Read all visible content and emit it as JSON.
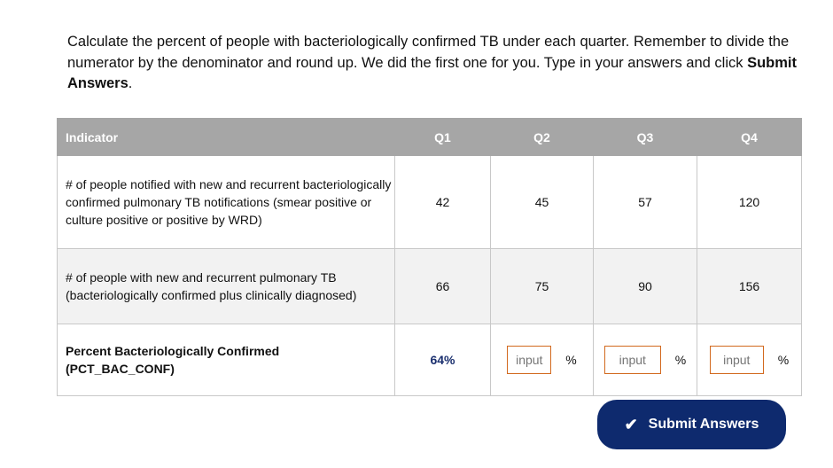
{
  "instructions": {
    "text": "Calculate the percent of people with bacteriologically confirmed TB under each quarter. Remember to divide the numerator by the denominator and round up. We did the first one for you. Type in your answers and click ",
    "bold": "Submit Answers",
    "end": "."
  },
  "table": {
    "headers": [
      "Indicator",
      "Q1",
      "Q2",
      "Q3",
      "Q4"
    ],
    "row1": {
      "label": "# of people notified with new and recurrent bacteriologically confirmed pulmonary TB notifications (smear positive or culture positive or positive by WRD)",
      "values": [
        "42",
        "45",
        "57",
        "120"
      ]
    },
    "row2": {
      "label": "# of people with new and recurrent pulmonary TB (bacteriologically confirmed plus clinically diagnosed)",
      "values": [
        "66",
        "75",
        "90",
        "156"
      ]
    },
    "row3": {
      "label_line1": "Percent Bacteriologically Confirmed",
      "label_line2": "(PCT_BAC_CONF)",
      "q1_value": "64%",
      "input_placeholder": "input",
      "percent_sign": "%"
    }
  },
  "submit": {
    "icon": "check-icon",
    "label": "Submit Answers"
  },
  "colors": {
    "header_bg": "#a6a6a6",
    "accent": "#0e2a6e",
    "input_border": "#d2691e"
  }
}
